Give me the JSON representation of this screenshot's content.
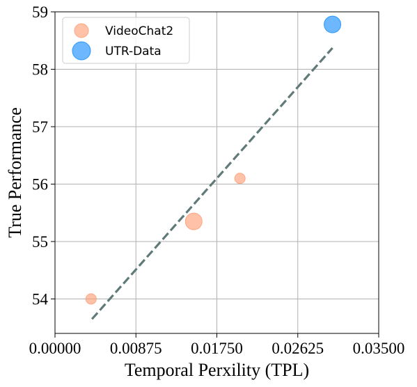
{
  "chart_data": {
    "type": "scatter",
    "title": "",
    "xlabel": "Temporal Perxility (TPL)",
    "ylabel": "True Performance",
    "xlim": [
      0.0,
      0.035
    ],
    "ylim": [
      53.4,
      59.0
    ],
    "xticks": [
      0.0,
      0.00875,
      0.0175,
      0.02625,
      0.035
    ],
    "xtick_labels": [
      "0.00000",
      "0.00875",
      "0.01750",
      "0.02625",
      "0.03500"
    ],
    "yticks": [
      54,
      55,
      56,
      57,
      58,
      59
    ],
    "ytick_labels": [
      "54",
      "55",
      "56",
      "57",
      "58",
      "59"
    ],
    "grid": true,
    "legend_position": "top-left",
    "series": [
      {
        "name": "VideoChat2",
        "color": "#FFA07A",
        "points": [
          {
            "x": 0.0039,
            "y": 54.0,
            "size": "small"
          },
          {
            "x": 0.015,
            "y": 55.35,
            "size": "large"
          },
          {
            "x": 0.02,
            "y": 56.1,
            "size": "small"
          }
        ]
      },
      {
        "name": "UTR-Data",
        "color": "#1E90FF",
        "points": [
          {
            "x": 0.03,
            "y": 58.78,
            "size": "large"
          }
        ]
      }
    ],
    "trend_line": {
      "style": "dashed",
      "color": "#5F7A78",
      "x": [
        0.004,
        0.03
      ],
      "y": [
        53.65,
        58.37
      ]
    }
  }
}
